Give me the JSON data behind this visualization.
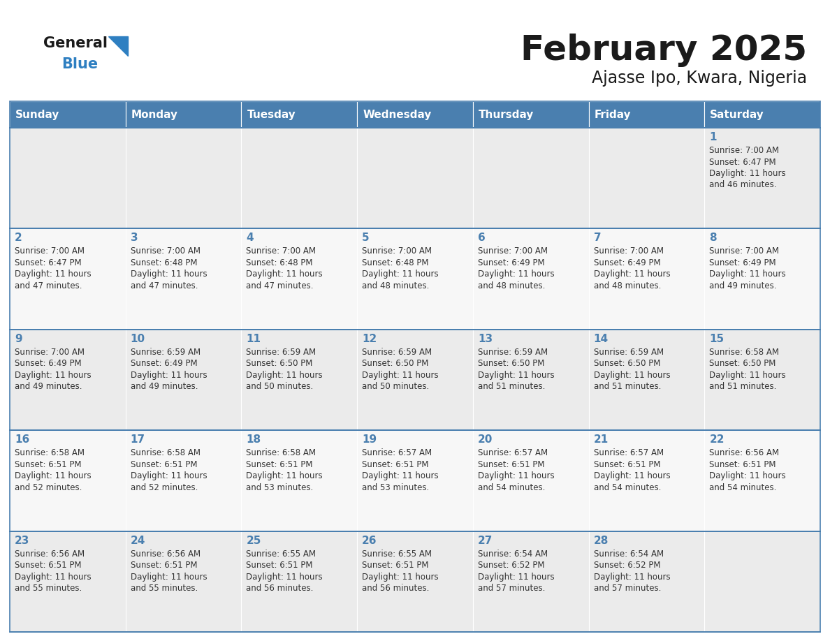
{
  "title": "February 2025",
  "subtitle": "Ajasse Ipo, Kwara, Nigeria",
  "days_of_week": [
    "Sunday",
    "Monday",
    "Tuesday",
    "Wednesday",
    "Thursday",
    "Friday",
    "Saturday"
  ],
  "header_bg": "#4a7faf",
  "header_text": "#ffffff",
  "cell_bg_odd": "#ebebeb",
  "cell_bg_even": "#f7f7f7",
  "cell_border": "#4a7faf",
  "day_num_color": "#4a7faf",
  "info_color": "#333333",
  "title_color": "#1a1a1a",
  "subtitle_color": "#1a1a1a",
  "logo_general_color": "#1a1a1a",
  "logo_blue_color": "#2e7fc1",
  "calendar_data": [
    [
      null,
      null,
      null,
      null,
      null,
      null,
      {
        "day": 1,
        "sunrise": "7:00 AM",
        "sunset": "6:47 PM",
        "daylight": "11 hours",
        "daylight2": "and 46 minutes."
      }
    ],
    [
      {
        "day": 2,
        "sunrise": "7:00 AM",
        "sunset": "6:47 PM",
        "daylight": "11 hours",
        "daylight2": "and 47 minutes."
      },
      {
        "day": 3,
        "sunrise": "7:00 AM",
        "sunset": "6:48 PM",
        "daylight": "11 hours",
        "daylight2": "and 47 minutes."
      },
      {
        "day": 4,
        "sunrise": "7:00 AM",
        "sunset": "6:48 PM",
        "daylight": "11 hours",
        "daylight2": "and 47 minutes."
      },
      {
        "day": 5,
        "sunrise": "7:00 AM",
        "sunset": "6:48 PM",
        "daylight": "11 hours",
        "daylight2": "and 48 minutes."
      },
      {
        "day": 6,
        "sunrise": "7:00 AM",
        "sunset": "6:49 PM",
        "daylight": "11 hours",
        "daylight2": "and 48 minutes."
      },
      {
        "day": 7,
        "sunrise": "7:00 AM",
        "sunset": "6:49 PM",
        "daylight": "11 hours",
        "daylight2": "and 48 minutes."
      },
      {
        "day": 8,
        "sunrise": "7:00 AM",
        "sunset": "6:49 PM",
        "daylight": "11 hours",
        "daylight2": "and 49 minutes."
      }
    ],
    [
      {
        "day": 9,
        "sunrise": "7:00 AM",
        "sunset": "6:49 PM",
        "daylight": "11 hours",
        "daylight2": "and 49 minutes."
      },
      {
        "day": 10,
        "sunrise": "6:59 AM",
        "sunset": "6:49 PM",
        "daylight": "11 hours",
        "daylight2": "and 49 minutes."
      },
      {
        "day": 11,
        "sunrise": "6:59 AM",
        "sunset": "6:50 PM",
        "daylight": "11 hours",
        "daylight2": "and 50 minutes."
      },
      {
        "day": 12,
        "sunrise": "6:59 AM",
        "sunset": "6:50 PM",
        "daylight": "11 hours",
        "daylight2": "and 50 minutes."
      },
      {
        "day": 13,
        "sunrise": "6:59 AM",
        "sunset": "6:50 PM",
        "daylight": "11 hours",
        "daylight2": "and 51 minutes."
      },
      {
        "day": 14,
        "sunrise": "6:59 AM",
        "sunset": "6:50 PM",
        "daylight": "11 hours",
        "daylight2": "and 51 minutes."
      },
      {
        "day": 15,
        "sunrise": "6:58 AM",
        "sunset": "6:50 PM",
        "daylight": "11 hours",
        "daylight2": "and 51 minutes."
      }
    ],
    [
      {
        "day": 16,
        "sunrise": "6:58 AM",
        "sunset": "6:51 PM",
        "daylight": "11 hours",
        "daylight2": "and 52 minutes."
      },
      {
        "day": 17,
        "sunrise": "6:58 AM",
        "sunset": "6:51 PM",
        "daylight": "11 hours",
        "daylight2": "and 52 minutes."
      },
      {
        "day": 18,
        "sunrise": "6:58 AM",
        "sunset": "6:51 PM",
        "daylight": "11 hours",
        "daylight2": "and 53 minutes."
      },
      {
        "day": 19,
        "sunrise": "6:57 AM",
        "sunset": "6:51 PM",
        "daylight": "11 hours",
        "daylight2": "and 53 minutes."
      },
      {
        "day": 20,
        "sunrise": "6:57 AM",
        "sunset": "6:51 PM",
        "daylight": "11 hours",
        "daylight2": "and 54 minutes."
      },
      {
        "day": 21,
        "sunrise": "6:57 AM",
        "sunset": "6:51 PM",
        "daylight": "11 hours",
        "daylight2": "and 54 minutes."
      },
      {
        "day": 22,
        "sunrise": "6:56 AM",
        "sunset": "6:51 PM",
        "daylight": "11 hours",
        "daylight2": "and 54 minutes."
      }
    ],
    [
      {
        "day": 23,
        "sunrise": "6:56 AM",
        "sunset": "6:51 PM",
        "daylight": "11 hours",
        "daylight2": "and 55 minutes."
      },
      {
        "day": 24,
        "sunrise": "6:56 AM",
        "sunset": "6:51 PM",
        "daylight": "11 hours",
        "daylight2": "and 55 minutes."
      },
      {
        "day": 25,
        "sunrise": "6:55 AM",
        "sunset": "6:51 PM",
        "daylight": "11 hours",
        "daylight2": "and 56 minutes."
      },
      {
        "day": 26,
        "sunrise": "6:55 AM",
        "sunset": "6:51 PM",
        "daylight": "11 hours",
        "daylight2": "and 56 minutes."
      },
      {
        "day": 27,
        "sunrise": "6:54 AM",
        "sunset": "6:52 PM",
        "daylight": "11 hours",
        "daylight2": "and 57 minutes."
      },
      {
        "day": 28,
        "sunrise": "6:54 AM",
        "sunset": "6:52 PM",
        "daylight": "11 hours",
        "daylight2": "and 57 minutes."
      },
      null
    ]
  ]
}
